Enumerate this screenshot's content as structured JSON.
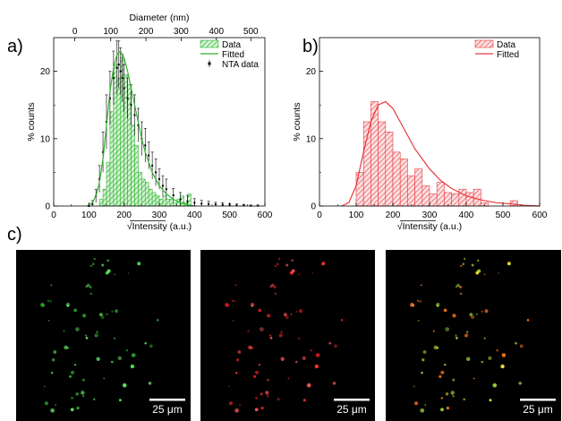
{
  "labels": {
    "a": "a)",
    "b": "b)",
    "c": "c)"
  },
  "colors": {
    "green": "#2db52d",
    "green_fill": "#bfe9bf",
    "red": "#e8393e",
    "red_fill": "#f6c2c3",
    "nta": "#000000"
  },
  "chart_data": [
    {
      "type": "bar",
      "panel": "a",
      "xlabel": "√Intensity (a.u.)",
      "ylabel": "% counts",
      "top_xlabel": "Diameter (nm)",
      "xlim": [
        0,
        600
      ],
      "ylim": [
        0,
        25
      ],
      "xticks": [
        0,
        100,
        200,
        300,
        400,
        500,
        600
      ],
      "yticks": [
        0,
        10,
        20
      ],
      "top_xticks": [
        {
          "label": "0",
          "x": 60
        },
        {
          "label": "100",
          "x": 162
        },
        {
          "label": "200",
          "x": 262
        },
        {
          "label": "300",
          "x": 362
        },
        {
          "label": "400",
          "x": 462
        },
        {
          "label": "500",
          "x": 560
        }
      ],
      "legend": [
        "Data",
        "Fitted",
        "NTA data"
      ],
      "bar_width": 10,
      "bars": [
        {
          "x": 135,
          "y": 1.0
        },
        {
          "x": 145,
          "y": 2.5
        },
        {
          "x": 155,
          "y": 6.5
        },
        {
          "x": 165,
          "y": 14.0
        },
        {
          "x": 175,
          "y": 21.0
        },
        {
          "x": 185,
          "y": 19.0
        },
        {
          "x": 195,
          "y": 22.0
        },
        {
          "x": 205,
          "y": 19.5
        },
        {
          "x": 215,
          "y": 18.0
        },
        {
          "x": 225,
          "y": 12.0
        },
        {
          "x": 235,
          "y": 9.0
        },
        {
          "x": 245,
          "y": 5.0
        },
        {
          "x": 255,
          "y": 4.0
        },
        {
          "x": 265,
          "y": 3.5
        },
        {
          "x": 275,
          "y": 2.5
        },
        {
          "x": 285,
          "y": 2.0
        },
        {
          "x": 295,
          "y": 1.5
        },
        {
          "x": 305,
          "y": 1.0
        },
        {
          "x": 315,
          "y": 1.5
        },
        {
          "x": 325,
          "y": 1.0
        },
        {
          "x": 335,
          "y": 1.0
        },
        {
          "x": 345,
          "y": 0.5
        },
        {
          "x": 355,
          "y": 1.0
        },
        {
          "x": 365,
          "y": 1.5
        },
        {
          "x": 375,
          "y": 0.5
        },
        {
          "x": 385,
          "y": 1.8
        }
      ],
      "fit": {
        "x": [
          95,
          110,
          120,
          130,
          140,
          150,
          160,
          170,
          180,
          190,
          200,
          210,
          220,
          230,
          240,
          250,
          260,
          280,
          300,
          320,
          340,
          360,
          380,
          400
        ],
        "y": [
          0,
          0.5,
          1.5,
          3.5,
          7,
          12,
          17,
          20.5,
          22.5,
          23,
          22,
          20,
          17.5,
          15,
          12.5,
          10,
          8,
          5,
          3,
          1.8,
          1,
          0.5,
          0.2,
          0
        ]
      },
      "nta": {
        "x": [
          100,
          110,
          120,
          130,
          140,
          150,
          160,
          170,
          180,
          185,
          190,
          195,
          200,
          210,
          220,
          230,
          240,
          250,
          260,
          270,
          280,
          290,
          300,
          310,
          320,
          340,
          360,
          380,
          400,
          420,
          440,
          460,
          480,
          500,
          520,
          540,
          560,
          580
        ],
        "y": [
          0,
          0.3,
          1.5,
          4,
          8,
          12.5,
          16,
          19,
          20.5,
          21,
          20,
          19,
          17.5,
          16,
          15,
          13.5,
          12,
          10,
          9,
          7.5,
          6,
          5,
          4,
          3,
          2.5,
          1.6,
          1.0,
          0.7,
          0.5,
          0.35,
          0.3,
          0.25,
          0.2,
          0.15,
          0.1,
          0.1,
          0.05,
          0.05
        ],
        "err": [
          0,
          0.5,
          1,
          2,
          3,
          4,
          4,
          4,
          4,
          3.5,
          3.5,
          3.5,
          3.5,
          3,
          3,
          3,
          2.5,
          2.5,
          2.5,
          2,
          2,
          2,
          1.5,
          1.5,
          1.5,
          1,
          1,
          0.8,
          0.6,
          0.5,
          0.4,
          0.3,
          0.3,
          0.2,
          0.2,
          0.15,
          0.1,
          0.1
        ]
      }
    },
    {
      "type": "bar",
      "panel": "b",
      "xlabel": "√Intensity (a.u.)",
      "ylabel": "% counts",
      "xlim": [
        0,
        600
      ],
      "ylim": [
        0,
        25
      ],
      "xticks": [
        0,
        100,
        200,
        300,
        400,
        500,
        600
      ],
      "yticks": [
        0,
        10,
        20
      ],
      "legend": [
        "Data",
        "Fitted"
      ],
      "bar_width": 20,
      "bars": [
        {
          "x": 110,
          "y": 5.0
        },
        {
          "x": 130,
          "y": 12.5
        },
        {
          "x": 150,
          "y": 15.5
        },
        {
          "x": 170,
          "y": 12.5
        },
        {
          "x": 190,
          "y": 11.0
        },
        {
          "x": 210,
          "y": 8.0
        },
        {
          "x": 230,
          "y": 7.0
        },
        {
          "x": 250,
          "y": 4.5
        },
        {
          "x": 270,
          "y": 5.5
        },
        {
          "x": 290,
          "y": 3.0
        },
        {
          "x": 310,
          "y": 1.8
        },
        {
          "x": 330,
          "y": 3.5
        },
        {
          "x": 350,
          "y": 2.0
        },
        {
          "x": 370,
          "y": 1.8
        },
        {
          "x": 390,
          "y": 2.5
        },
        {
          "x": 410,
          "y": 2.0
        },
        {
          "x": 430,
          "y": 2.5
        },
        {
          "x": 450,
          "y": 0.5
        },
        {
          "x": 530,
          "y": 0.8
        }
      ],
      "fit": {
        "x": [
          60,
          80,
          100,
          120,
          140,
          160,
          180,
          200,
          220,
          240,
          260,
          280,
          300,
          330,
          360,
          400,
          440,
          480,
          520,
          560,
          600
        ],
        "y": [
          0,
          0.5,
          3,
          8,
          12.5,
          15,
          15.5,
          14.5,
          12.5,
          10.5,
          8.5,
          7,
          5.5,
          3.8,
          2.6,
          1.5,
          0.9,
          0.5,
          0.3,
          0.1,
          0
        ]
      }
    }
  ],
  "micrographs": [
    {
      "name": "green-channel",
      "scale_label": "25 μm"
    },
    {
      "name": "red-channel",
      "scale_label": "25 μm"
    },
    {
      "name": "merged-channel",
      "scale_label": "25 μm"
    }
  ]
}
